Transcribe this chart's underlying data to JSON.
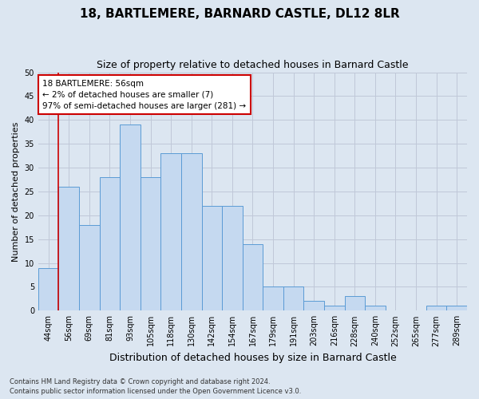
{
  "title": "18, BARTLEMERE, BARNARD CASTLE, DL12 8LR",
  "subtitle": "Size of property relative to detached houses in Barnard Castle",
  "xlabel": "Distribution of detached houses by size in Barnard Castle",
  "ylabel": "Number of detached properties",
  "categories": [
    "44sqm",
    "56sqm",
    "69sqm",
    "81sqm",
    "93sqm",
    "105sqm",
    "118sqm",
    "130sqm",
    "142sqm",
    "154sqm",
    "167sqm",
    "179sqm",
    "191sqm",
    "203sqm",
    "216sqm",
    "228sqm",
    "240sqm",
    "252sqm",
    "265sqm",
    "277sqm",
    "289sqm"
  ],
  "values": [
    9,
    26,
    18,
    28,
    39,
    28,
    33,
    33,
    22,
    22,
    14,
    5,
    5,
    2,
    1,
    3,
    1,
    0,
    0,
    1,
    1
  ],
  "bar_color": "#c5d9f0",
  "bar_edge_color": "#5b9bd5",
  "highlight_index": 1,
  "highlight_line_color": "#cc0000",
  "ylim": [
    0,
    50
  ],
  "yticks": [
    0,
    5,
    10,
    15,
    20,
    25,
    30,
    35,
    40,
    45,
    50
  ],
  "annotation_line1": "18 BARTLEMERE: 56sqm",
  "annotation_line2": "← 2% of detached houses are smaller (7)",
  "annotation_line3": "97% of semi-detached houses are larger (281) →",
  "annotation_box_color": "#ffffff",
  "annotation_box_edge": "#cc0000",
  "grid_color": "#c0c8d8",
  "background_color": "#dce6f1",
  "footer_line1": "Contains HM Land Registry data © Crown copyright and database right 2024.",
  "footer_line2": "Contains public sector information licensed under the Open Government Licence v3.0.",
  "title_fontsize": 11,
  "subtitle_fontsize": 9,
  "xlabel_fontsize": 9,
  "ylabel_fontsize": 8,
  "tick_fontsize": 7,
  "annotation_fontsize": 7.5,
  "footer_fontsize": 6
}
